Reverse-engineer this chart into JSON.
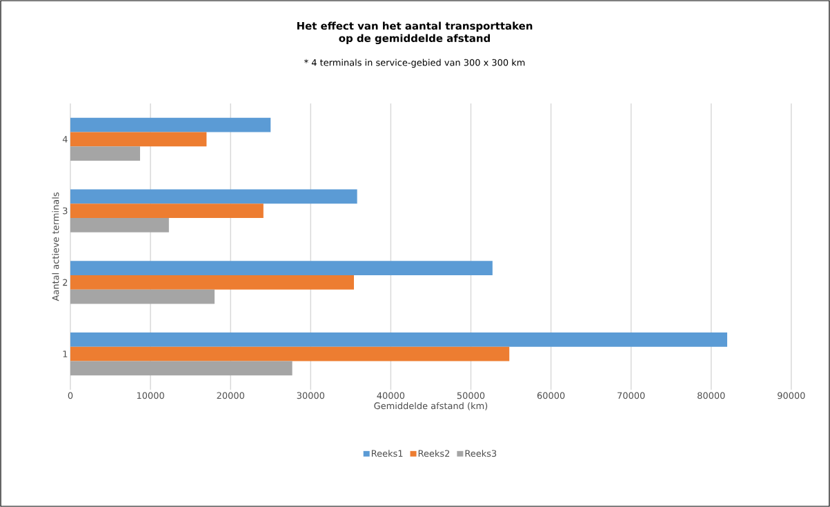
{
  "chart_data": {
    "type": "bar",
    "orientation": "horizontal",
    "title": "**Het effect van het aantal transporttaken**",
    "subtitle": "**op de gemiddelde afstand**",
    "annotations": [
      "* 4 terminals in service-gebied van 300 x 300 km"
    ],
    "xlabel": "Gemiddelde afstand (km)",
    "ylabel": "Aantal actieve terminals",
    "categories": [
      "4",
      "3",
      "2",
      "1"
    ],
    "series": [
      {
        "name": "Reeks1",
        "color": "#5b9bd5",
        "values": [
          25000,
          35800,
          52700,
          82000
        ]
      },
      {
        "name": "Reeks2",
        "color": "#ed7d31",
        "values": [
          17000,
          24100,
          35400,
          54800
        ]
      },
      {
        "name": "Reeks3",
        "color": "#a5a5a5",
        "values": [
          8700,
          12300,
          18000,
          27700
        ]
      }
    ],
    "xlim": [
      0,
      90000
    ],
    "xticks": [
      0,
      10000,
      20000,
      30000,
      40000,
      50000,
      60000,
      70000,
      80000,
      90000
    ],
    "grid": "x",
    "legend": "bottom"
  }
}
